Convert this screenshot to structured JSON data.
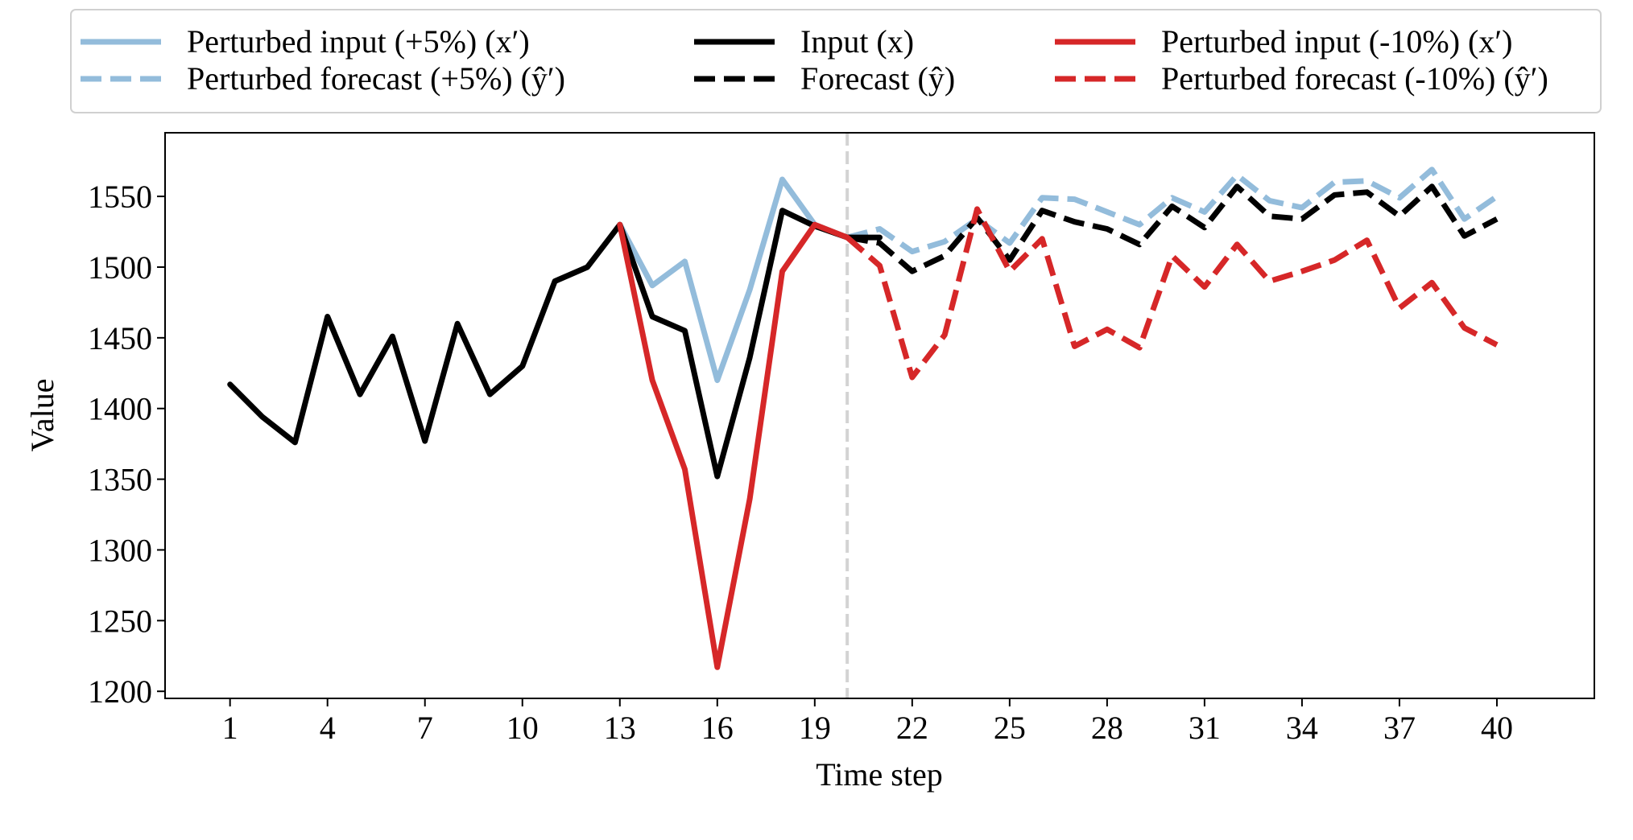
{
  "chart_data": {
    "type": "line",
    "xlabel": "Time step",
    "ylabel": "Value",
    "xlim": [
      -1,
      43
    ],
    "ylim": [
      1195,
      1595
    ],
    "x_ticks": [
      1,
      4,
      7,
      10,
      13,
      16,
      19,
      22,
      25,
      28,
      31,
      34,
      37,
      40
    ],
    "y_ticks": [
      1200,
      1250,
      1300,
      1350,
      1400,
      1450,
      1500,
      1550
    ],
    "forecast_start_marker": {
      "x": 20,
      "color": "#d3d3d3"
    },
    "grid": false,
    "legend_placement": "top, 3 columns",
    "series": [
      {
        "name": "Perturbed input (+5%) (x′)",
        "color": "#93bcdb",
        "style": "solid",
        "x": [
          13,
          14,
          15,
          16,
          17,
          18,
          19,
          20
        ],
        "y": [
          1530,
          1487,
          1504,
          1420,
          1484,
          1562,
          1530,
          1521
        ]
      },
      {
        "name": "Perturbed forecast (+5%) (ŷ′)",
        "color": "#93bcdb",
        "style": "dashed",
        "x": [
          20,
          21,
          22,
          23,
          24,
          25,
          26,
          27,
          28,
          29,
          30,
          31,
          32,
          33,
          34,
          35,
          36,
          37,
          38,
          39,
          40
        ],
        "y": [
          1521,
          1527,
          1511,
          1518,
          1534,
          1517,
          1549,
          1548,
          1539,
          1530,
          1549,
          1539,
          1565,
          1547,
          1542,
          1560,
          1561,
          1549,
          1569,
          1534,
          1550
        ]
      },
      {
        "name": "Input (x)",
        "color": "#000000",
        "style": "solid",
        "x": [
          1,
          2,
          3,
          4,
          5,
          6,
          7,
          8,
          9,
          10,
          11,
          12,
          13,
          14,
          15,
          16,
          17,
          18,
          19,
          20,
          21
        ],
        "y": [
          1417,
          1394,
          1376,
          1465,
          1410,
          1451,
          1377,
          1460,
          1410,
          1430,
          1490,
          1500,
          1530,
          1465,
          1455,
          1352,
          1436,
          1540,
          1529,
          1521,
          1521
        ]
      },
      {
        "name": "Forecast (ŷ)",
        "color": "#000000",
        "style": "dashed",
        "x": [
          20,
          21,
          22,
          23,
          24,
          25,
          26,
          27,
          28,
          29,
          30,
          31,
          32,
          33,
          34,
          35,
          36,
          37,
          38,
          39,
          40
        ],
        "y": [
          1521,
          1517,
          1497,
          1508,
          1535,
          1505,
          1540,
          1532,
          1527,
          1516,
          1543,
          1528,
          1557,
          1536,
          1534,
          1551,
          1553,
          1536,
          1557,
          1522,
          1534
        ]
      },
      {
        "name": "Perturbed input (-10%) (x′)",
        "color": "#d62728",
        "style": "solid",
        "x": [
          13,
          14,
          15,
          16,
          17,
          18,
          19,
          20
        ],
        "y": [
          1530,
          1420,
          1357,
          1217,
          1336,
          1497,
          1530,
          1521
        ]
      },
      {
        "name": "Perturbed forecast (-10%) (ŷ′)",
        "color": "#d62728",
        "style": "dashed",
        "x": [
          20,
          21,
          22,
          23,
          24,
          25,
          26,
          27,
          28,
          29,
          30,
          31,
          32,
          33,
          34,
          35,
          36,
          37,
          38,
          39,
          40
        ],
        "y": [
          1521,
          1501,
          1422,
          1452,
          1541,
          1497,
          1520,
          1444,
          1456,
          1443,
          1508,
          1486,
          1516,
          1490,
          1497,
          1505,
          1519,
          1471,
          1489,
          1457,
          1445
        ]
      }
    ]
  }
}
